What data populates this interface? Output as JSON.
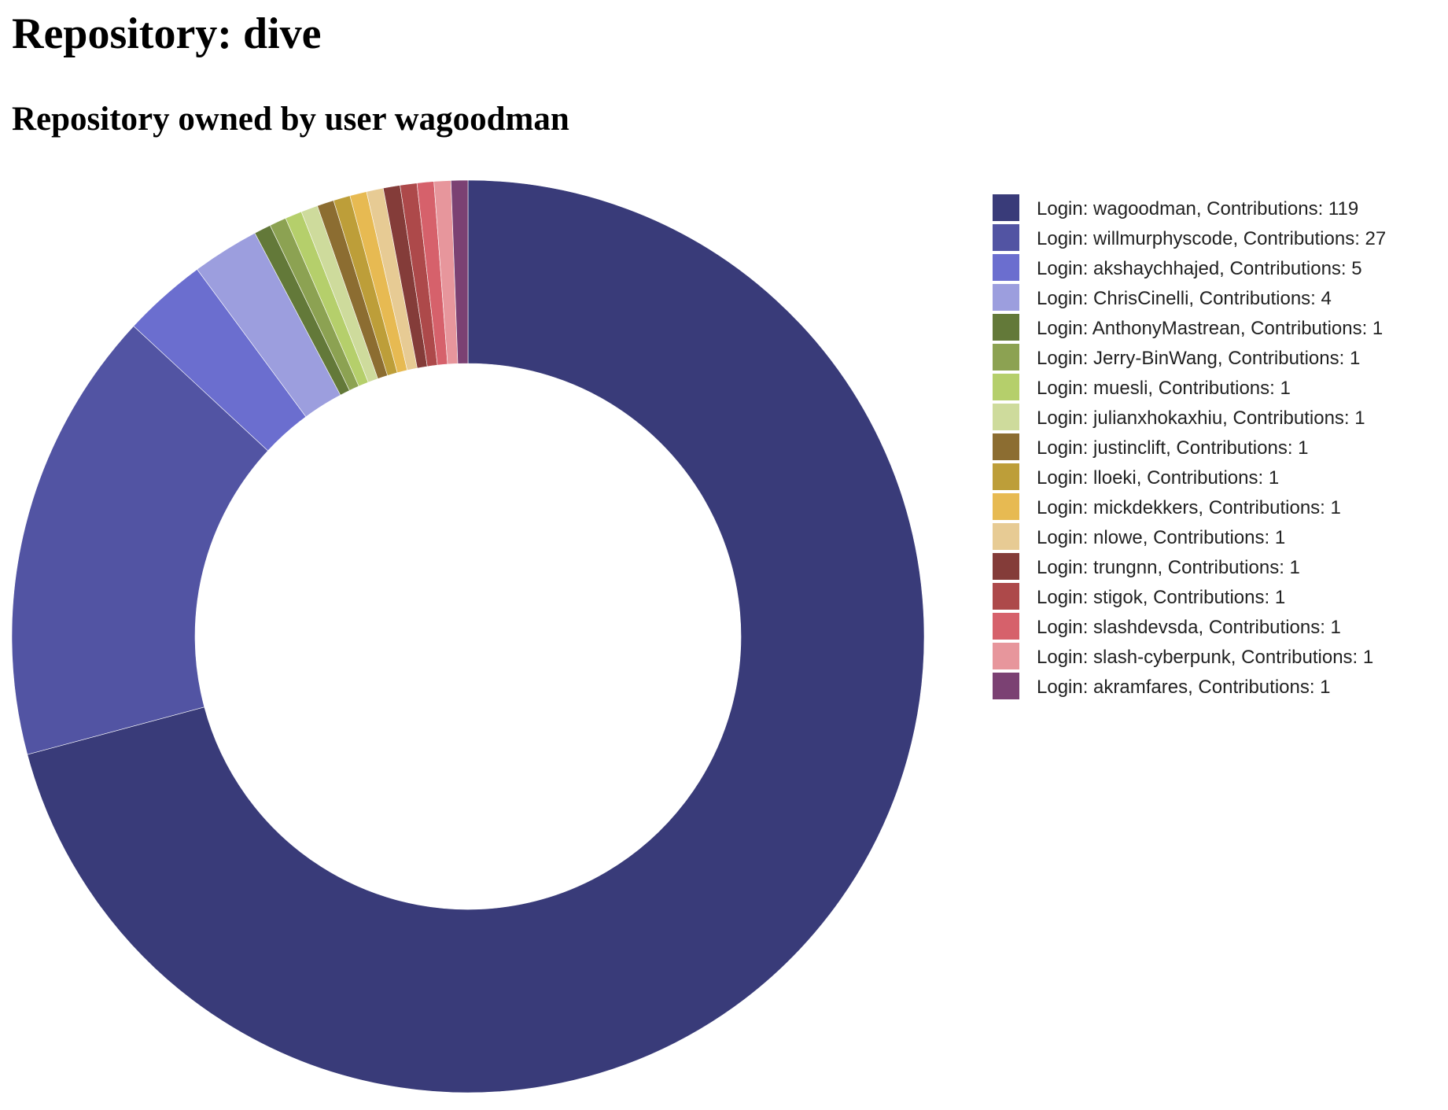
{
  "page": {
    "title": "Repository: dive",
    "subtitle": "Repository owned by user wagoodman"
  },
  "chart_data": {
    "type": "pie",
    "variant": "donut",
    "legend_position": "right",
    "slice_order": "clockwise from top",
    "categories": [
      "Login: wagoodman, Contributions: 119",
      "Login: willmurphyscode, Contributions: 27",
      "Login: akshaychhajed, Contributions: 5",
      "Login: ChrisCinelli, Contributions: 4",
      "Login: AnthonyMastrean, Contributions: 1",
      "Login: Jerry-BinWang, Contributions: 1",
      "Login: muesli, Contributions: 1",
      "Login: julianxhokaxhiu, Contributions: 1",
      "Login: justinclift, Contributions: 1",
      "Login: lloeki, Contributions: 1",
      "Login: mickdekkers, Contributions: 1",
      "Login: nlowe, Contributions: 1",
      "Login: trungnn, Contributions: 1",
      "Login: stigok, Contributions: 1",
      "Login: slashdevsda, Contributions: 1",
      "Login: slash-cyberpunk, Contributions: 1",
      "Login: akramfares, Contributions: 1"
    ],
    "values": [
      119,
      27,
      5,
      4,
      1,
      1,
      1,
      1,
      1,
      1,
      1,
      1,
      1,
      1,
      1,
      1,
      1
    ],
    "colors": [
      "#393b79",
      "#5254a3",
      "#6b6ecf",
      "#9c9ede",
      "#637939",
      "#8ca252",
      "#b5cf6b",
      "#cedb9c",
      "#8c6d31",
      "#bd9e39",
      "#e7ba52",
      "#e7cb94",
      "#843c39",
      "#ad494a",
      "#d6616b",
      "#e7969c",
      "#7b4173"
    ]
  }
}
